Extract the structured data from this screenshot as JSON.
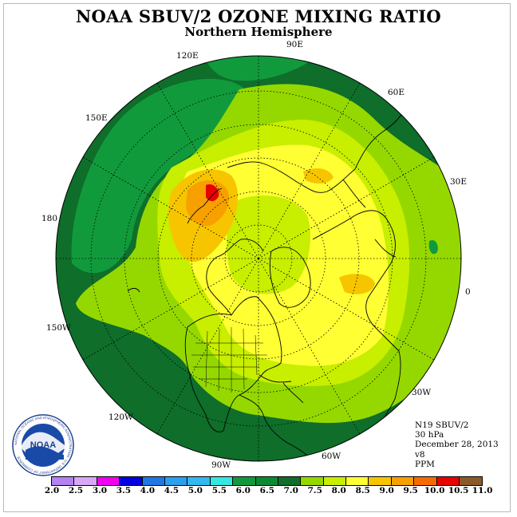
{
  "title": "NOAA SBUV/2 OZONE MIXING RATIO",
  "subtitle": "Northern Hemisphere",
  "longitude_labels": [
    "90E",
    "60E",
    "30E",
    "0",
    "30W",
    "60W",
    "90W",
    "120W",
    "150W",
    "180",
    "150E",
    "120E"
  ],
  "info": {
    "instrument": "N19 SBUV/2",
    "level": "30 hPa",
    "date": "December 28, 2013",
    "version": "v8",
    "units": "PPM"
  },
  "logo": {
    "text": "NOAA",
    "ring_text": "NATIONAL OCEANIC AND ATMOSPHERIC ADMINISTRATION · U.S. DEPARTMENT OF COMMERCE"
  },
  "colorbar": {
    "ticks": [
      "2.0",
      "2.5",
      "3.0",
      "3.5",
      "4.0",
      "4.5",
      "5.0",
      "5.5",
      "6.0",
      "6.5",
      "7.0",
      "7.5",
      "8.0",
      "8.5",
      "9.0",
      "9.5",
      "10.0",
      "10.5",
      "11.0"
    ],
    "colors": [
      "#b383f0",
      "#d9a8f5",
      "#f000f0",
      "#0000e0",
      "#1f78e6",
      "#2aa0ee",
      "#33b8f0",
      "#33e8e0",
      "#119a3c",
      "#0b8a32",
      "#0e6e2a",
      "#95d800",
      "#c8ee00",
      "#ffff33",
      "#f7c500",
      "#f7a000",
      "#f76a00",
      "#e80000",
      "#8b5a2b"
    ]
  },
  "map_colors": {
    "dark_green": "#0e6e2a",
    "mid_green": "#119a3c",
    "light_green": "#95d800",
    "yellow_green": "#c8ee00",
    "yellow": "#ffff33",
    "light_orange": "#f7c500",
    "orange": "#f7a000",
    "red": "#e80000"
  }
}
